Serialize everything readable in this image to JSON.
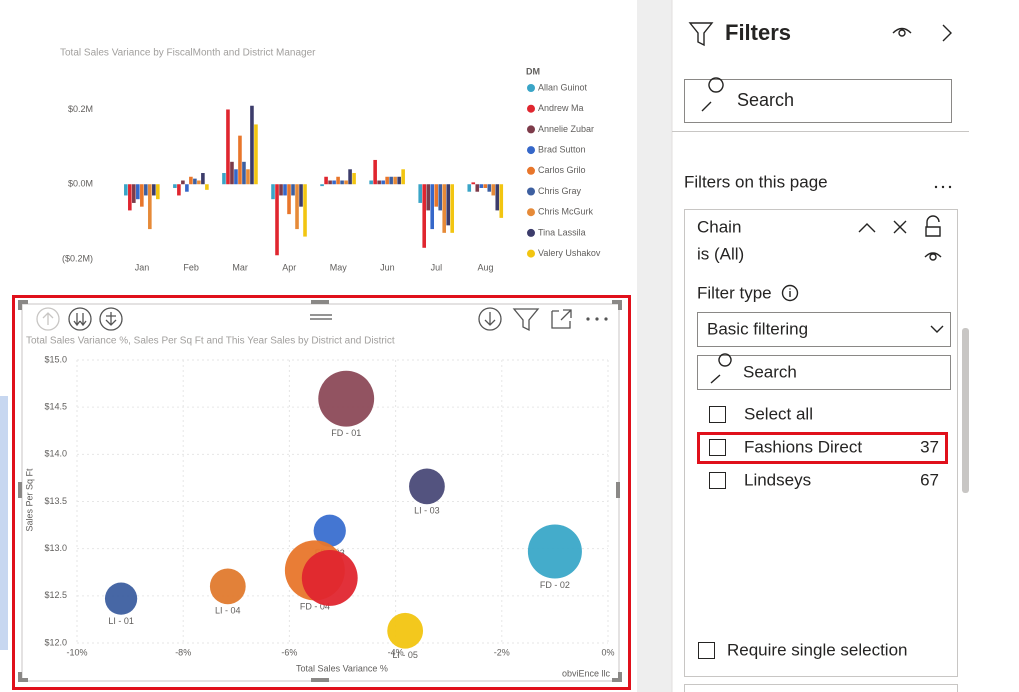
{
  "chart_data": [
    {
      "type": "bar",
      "title": "Total Sales Variance by FiscalMonth and District Manager",
      "legend_title": "DM",
      "categories": [
        "Jan",
        "Feb",
        "Mar",
        "Apr",
        "May",
        "Jun",
        "Jul",
        "Aug"
      ],
      "series": [
        {
          "name": "Allan Guinot",
          "color": "#3aa5c7",
          "values": [
            -0.03,
            -0.01,
            0.03,
            -0.04,
            -0.005,
            0.01,
            -0.05,
            -0.02
          ]
        },
        {
          "name": "Andrew Ma",
          "color": "#e0262f",
          "values": [
            -0.07,
            -0.03,
            0.2,
            -0.19,
            0.02,
            0.065,
            -0.17,
            0.005
          ]
        },
        {
          "name": "Annelie Zubar",
          "color": "#7d3b4a",
          "values": [
            -0.05,
            0.01,
            0.06,
            -0.03,
            0.01,
            0.01,
            -0.07,
            -0.02
          ]
        },
        {
          "name": "Brad Sutton",
          "color": "#3567c9",
          "values": [
            -0.04,
            -0.02,
            0.04,
            -0.03,
            0.01,
            0.01,
            -0.12,
            -0.01
          ]
        },
        {
          "name": "Carlos Grilo",
          "color": "#e8762b",
          "values": [
            -0.06,
            0.02,
            0.13,
            -0.08,
            0.02,
            0.02,
            -0.06,
            -0.01
          ]
        },
        {
          "name": "Chris Gray",
          "color": "#3d5fa0",
          "values": [
            -0.03,
            0.015,
            0.06,
            -0.03,
            0.01,
            0.02,
            -0.07,
            -0.02
          ]
        },
        {
          "name": "Chris McGurk",
          "color": "#e68a38",
          "values": [
            -0.12,
            0.01,
            0.04,
            -0.12,
            0.01,
            0.02,
            -0.13,
            -0.03
          ]
        },
        {
          "name": "Tina Lassila",
          "color": "#3c3c6b",
          "values": [
            -0.03,
            0.03,
            0.21,
            -0.06,
            0.04,
            0.02,
            -0.11,
            -0.07
          ]
        },
        {
          "name": "Valery Ushakov",
          "color": "#f2c511",
          "values": [
            -0.04,
            -0.015,
            0.16,
            -0.14,
            0.03,
            0.04,
            -0.13,
            -0.09
          ]
        }
      ],
      "ylim": [
        -0.2,
        0.22
      ],
      "yticks": [
        {
          "value": -0.2,
          "label": "($0.2M)"
        },
        {
          "value": 0,
          "label": "$0.0M"
        },
        {
          "value": 0.2,
          "label": "$0.2M"
        }
      ]
    },
    {
      "type": "scatter",
      "title": "Total Sales Variance %, Sales Per Sq Ft and This Year Sales by District and District",
      "x_label": "Total Sales Variance %",
      "y_label": "Sales Per Sq Ft",
      "labels": [
        "FD - 01",
        "LI - 03",
        "FD - 03",
        "FD - 02",
        "FD - 04",
        null,
        "LI - 04",
        "LI - 01",
        "LI - 05"
      ],
      "x": [
        -4.93,
        -3.41,
        -5.24,
        -1.0,
        -5.52,
        -5.24,
        -7.16,
        -9.17,
        -3.82
      ],
      "values": [
        14.59,
        13.66,
        13.19,
        12.97,
        12.77,
        12.69,
        12.6,
        12.47,
        12.13
      ],
      "sizes": [
        7.8,
        3.2,
        2.6,
        7.3,
        9.0,
        7.8,
        3.2,
        2.6,
        3.2
      ],
      "colors": [
        "#8c4a58",
        "#4a4a78",
        "#3a6fd0",
        "#3aa8c8",
        "#e8762b",
        "#e0262f",
        "#e07a2e",
        "#3d5fa0",
        "#f2c511"
      ],
      "xlim": [
        -10,
        0
      ],
      "xticks": [
        {
          "value": -10,
          "label": "-10%"
        },
        {
          "value": -8,
          "label": "-8%"
        },
        {
          "value": -6,
          "label": "-6%"
        },
        {
          "value": -4,
          "label": "-4%"
        },
        {
          "value": -2,
          "label": "-2%"
        },
        {
          "value": 0,
          "label": "0%"
        }
      ],
      "ylim": [
        12,
        15
      ],
      "yticks": [
        {
          "value": 12,
          "label": "$12.0"
        },
        {
          "value": 12.5,
          "label": "$12.5"
        },
        {
          "value": 13,
          "label": "$13.0"
        },
        {
          "value": 13.5,
          "label": "$13.5"
        },
        {
          "value": 14,
          "label": "$14.0"
        },
        {
          "value": 14.5,
          "label": "$14.5"
        },
        {
          "value": 15,
          "label": "$15.0"
        }
      ],
      "grid": true,
      "watermark": "obviEnce llc"
    }
  ],
  "filters": {
    "title": "Filters",
    "search": "Search",
    "section": "Filters on this page",
    "card": {
      "field": "Chain",
      "state": "is (All)",
      "filter_type_label": "Filter type",
      "filter_type": "Basic filtering",
      "search": "Search",
      "select_all": "Select all",
      "items": [
        {
          "label": "Fashions Direct",
          "count": 37
        },
        {
          "label": "Lindseys",
          "count": 67
        }
      ],
      "require_single": "Require single selection"
    }
  }
}
